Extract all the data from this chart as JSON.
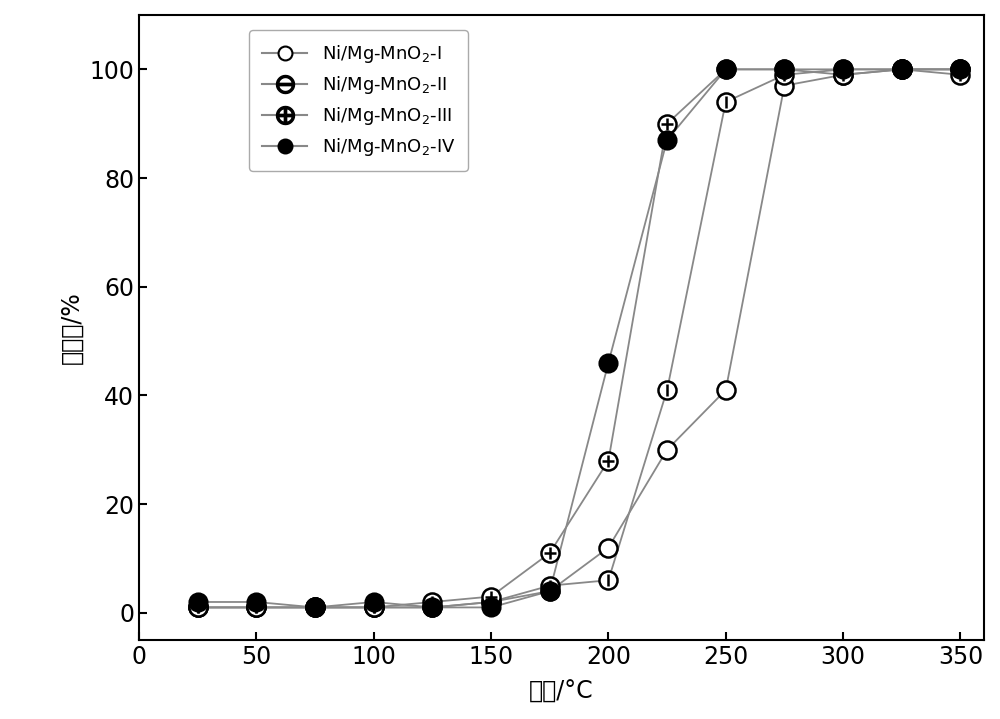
{
  "series": [
    {
      "label": "Ni/Mg-MnO$_2$-I",
      "x": [
        25,
        50,
        75,
        100,
        125,
        150,
        175,
        200,
        225,
        250,
        275,
        300,
        325,
        350
      ],
      "y": [
        1,
        1,
        1,
        1,
        1,
        2,
        4,
        12,
        30,
        41,
        97,
        99,
        100,
        100
      ],
      "marker": "open_circle"
    },
    {
      "label": "Ni/Mg-MnO$_2$-II",
      "x": [
        25,
        50,
        75,
        100,
        125,
        150,
        175,
        200,
        225,
        250,
        275,
        300,
        325,
        350
      ],
      "y": [
        1,
        1,
        1,
        1,
        1,
        2,
        5,
        6,
        41,
        94,
        99,
        100,
        100,
        100
      ],
      "marker": "circle_minus"
    },
    {
      "label": "Ni/Mg-MnO$_2$-III",
      "x": [
        25,
        50,
        75,
        100,
        125,
        150,
        175,
        200,
        225,
        250,
        275,
        300,
        325,
        350
      ],
      "y": [
        1,
        1,
        1,
        1,
        2,
        3,
        11,
        28,
        90,
        100,
        100,
        99,
        100,
        99
      ],
      "marker": "circle_plus"
    },
    {
      "label": "Ni/Mg-MnO$_2$-IV",
      "x": [
        25,
        50,
        75,
        100,
        125,
        150,
        175,
        200,
        225,
        250,
        275,
        300,
        325,
        350
      ],
      "y": [
        2,
        2,
        1,
        2,
        1,
        1,
        4,
        46,
        87,
        100,
        100,
        100,
        100,
        100
      ],
      "marker": "filled_circle"
    }
  ],
  "xlabel": "温度/°C",
  "ylabel": "转化率/%",
  "xlim": [
    0,
    360
  ],
  "ylim": [
    -5,
    110
  ],
  "xticks": [
    0,
    50,
    100,
    150,
    200,
    250,
    300,
    350
  ],
  "yticks": [
    0,
    20,
    40,
    60,
    80,
    100
  ],
  "line_color": "#888888",
  "marker_size": 13,
  "line_width": 1.3,
  "font_size": 17,
  "legend_font_size": 13,
  "background_color": "#ffffff"
}
